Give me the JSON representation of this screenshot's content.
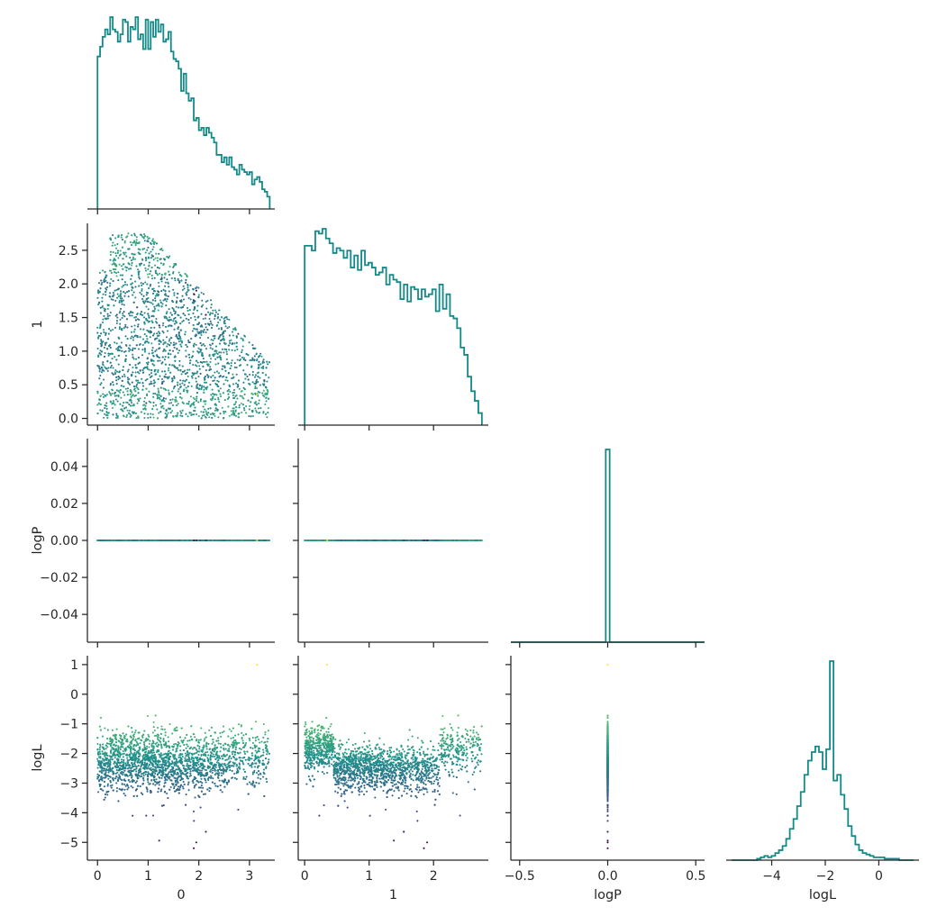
{
  "chart_data": {
    "type": "corner-plot",
    "variables": [
      "0",
      "1",
      "logP",
      "logL"
    ],
    "colors": {
      "histogram": "#138a88",
      "axis": "#262626",
      "scatter_colormap": [
        "#440154",
        "#3b528b",
        "#21918c",
        "#5ec962",
        "#fde725"
      ]
    },
    "axes": {
      "x0": {
        "label": "0",
        "range": [
          -0.2,
          3.5
        ],
        "ticks": [
          0,
          1,
          2,
          3
        ],
        "tick_labels": [
          "0",
          "1",
          "2",
          "3"
        ]
      },
      "x1": {
        "label": "1",
        "range": [
          -0.1,
          2.85
        ],
        "ticks": [
          0,
          1,
          2
        ],
        "tick_labels": [
          "0",
          "1",
          "2"
        ]
      },
      "xlogP": {
        "label": "logP",
        "range": [
          -0.55,
          0.55
        ],
        "ticks": [
          -0.5,
          0.0,
          0.5
        ],
        "tick_labels": [
          "−0.5",
          "0.0",
          "0.5"
        ]
      },
      "xlogL": {
        "label": "logL",
        "range": [
          -5.7,
          1.5
        ],
        "ticks": [
          -4,
          -2,
          0
        ],
        "tick_labels": [
          "−4",
          "−2",
          "0"
        ]
      },
      "y1": {
        "label": "1",
        "range": [
          -0.1,
          2.9
        ],
        "ticks": [
          0,
          0.5,
          1,
          1.5,
          2,
          2.5
        ],
        "tick_labels": [
          "0.0",
          "0.5",
          "1.0",
          "1.5",
          "2.0",
          "2.5"
        ]
      },
      "ylogP": {
        "label": "logP",
        "range": [
          -0.055,
          0.055
        ],
        "ticks": [
          -0.04,
          -0.02,
          0,
          0.02,
          0.04
        ],
        "tick_labels": [
          "−0.04",
          "−0.02",
          "0.00",
          "0.02",
          "0.04"
        ]
      },
      "ylogL": {
        "label": "logL",
        "range": [
          -5.6,
          1.3
        ],
        "ticks": [
          -5,
          -4,
          -3,
          -2,
          -1,
          0,
          1
        ],
        "tick_labels": [
          "−5",
          "−4",
          "−3",
          "−2",
          "−1",
          "0",
          "1"
        ]
      }
    },
    "hist_0": {
      "x_start": 0.0,
      "x_end": 3.4,
      "counts": [
        62,
        66,
        70,
        73,
        71,
        78,
        73,
        72,
        68,
        71,
        77,
        76,
        68,
        74,
        73,
        78,
        69,
        71,
        65,
        77,
        65,
        76,
        70,
        77,
        72,
        75,
        68,
        69,
        72,
        64,
        61,
        60,
        57,
        48,
        55,
        47,
        44,
        45,
        36,
        37,
        32,
        33,
        30,
        33,
        31,
        29,
        27,
        22,
        22,
        19,
        21,
        18,
        21,
        17,
        16,
        14,
        18,
        16,
        15,
        14,
        15,
        10,
        12,
        13,
        11,
        8,
        7,
        5
      ]
    },
    "hist_1": {
      "x_start": 0.0,
      "x_end": 2.75,
      "counts": [
        74,
        74,
        72,
        80,
        79,
        81,
        77,
        75,
        71,
        73,
        72,
        69,
        72,
        65,
        70,
        64,
        72,
        66,
        67,
        65,
        62,
        63,
        65,
        58,
        62,
        60,
        59,
        52,
        58,
        51,
        57,
        56,
        52,
        56,
        53,
        54,
        56,
        47,
        58,
        48,
        54,
        45,
        44,
        40,
        32,
        29,
        20,
        14,
        10,
        5
      ]
    },
    "hist_logP": {
      "spike_at": 0.0,
      "spike_width": 0.022,
      "relative_height": 1.0
    },
    "hist_logL": {
      "x_start": -5.5,
      "x_end": 1.3,
      "counts": [
        0,
        0,
        0,
        0,
        0,
        0,
        0,
        1,
        2,
        3,
        2,
        3,
        5,
        7,
        10,
        15,
        22,
        29,
        38,
        48,
        60,
        70,
        76,
        80,
        76,
        64,
        78,
        140,
        56,
        60,
        46,
        36,
        24,
        17,
        11,
        7,
        5,
        4,
        3,
        2,
        2,
        2,
        1,
        1,
        1,
        1,
        0,
        0,
        0,
        0
      ]
    },
    "scatter": {
      "points_per_panel": 2600,
      "marker": "dot"
    }
  }
}
